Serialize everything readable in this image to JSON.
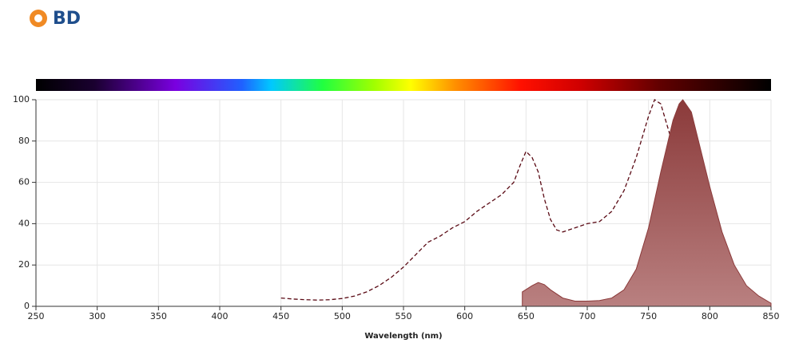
{
  "brand": "BD",
  "chart_data": {
    "type": "spectrum",
    "xlabel": "Wavelength (nm)",
    "xlim": [
      250,
      850
    ],
    "xticks": [
      250,
      300,
      350,
      400,
      450,
      500,
      550,
      600,
      650,
      700,
      750,
      800,
      850
    ],
    "ylim": [
      0,
      100
    ],
    "yticks": [
      0,
      20,
      40,
      60,
      80,
      100
    ],
    "grid": true,
    "series": [
      {
        "style": "dashed",
        "color": "#5a0a14",
        "x": [
          450,
          460,
          470,
          480,
          490,
          500,
          510,
          520,
          530,
          540,
          550,
          560,
          570,
          580,
          590,
          600,
          610,
          620,
          630,
          640,
          645,
          650,
          655,
          660,
          665,
          670,
          675,
          680,
          690,
          700,
          710,
          720,
          730,
          740,
          750,
          755,
          760,
          770,
          780,
          790,
          800,
          810,
          820
        ],
        "values": [
          4,
          3.5,
          3.2,
          3,
          3.2,
          3.8,
          5,
          7,
          10,
          14,
          19,
          25,
          31,
          34,
          38,
          41,
          46,
          50,
          54,
          60,
          68,
          75,
          72,
          65,
          52,
          42,
          37,
          36,
          38,
          40,
          41,
          46,
          56,
          72,
          92,
          100,
          98,
          78,
          53,
          34,
          18,
          9,
          4
        ]
      },
      {
        "style": "area",
        "color": "#8b3a3a",
        "x": [
          647,
          655,
          660,
          665,
          670,
          680,
          690,
          700,
          710,
          720,
          730,
          740,
          750,
          760,
          770,
          775,
          778,
          785,
          790,
          800,
          810,
          820,
          830,
          840,
          850
        ],
        "values": [
          7,
          10,
          11.5,
          10.5,
          8,
          4,
          2.5,
          2.5,
          2.8,
          4,
          8,
          18,
          38,
          65,
          90,
          98,
          100,
          94,
          82,
          58,
          36,
          20,
          10,
          5,
          1.5
        ]
      }
    ]
  }
}
